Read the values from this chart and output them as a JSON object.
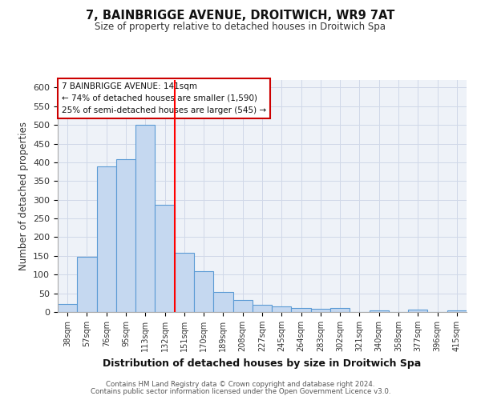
{
  "title1": "7, BAINBRIGGE AVENUE, DROITWICH, WR9 7AT",
  "title2": "Size of property relative to detached houses in Droitwich Spa",
  "xlabel": "Distribution of detached houses by size in Droitwich Spa",
  "ylabel": "Number of detached properties",
  "categories": [
    "38sqm",
    "57sqm",
    "76sqm",
    "95sqm",
    "113sqm",
    "132sqm",
    "151sqm",
    "170sqm",
    "189sqm",
    "208sqm",
    "227sqm",
    "245sqm",
    "264sqm",
    "283sqm",
    "302sqm",
    "321sqm",
    "340sqm",
    "358sqm",
    "377sqm",
    "396sqm",
    "415sqm"
  ],
  "values": [
    22,
    148,
    390,
    408,
    500,
    287,
    158,
    110,
    53,
    32,
    20,
    15,
    10,
    8,
    10,
    0,
    5,
    0,
    7,
    0,
    5
  ],
  "bar_color": "#c5d8f0",
  "bar_edge_color": "#5b9bd5",
  "grid_color": "#d0d8e8",
  "bg_color": "#eef2f8",
  "red_line_x": 5.5,
  "annotation_line1": "7 BAINBRIGGE AVENUE: 141sqm",
  "annotation_line2": "← 74% of detached houses are smaller (1,590)",
  "annotation_line3": "25% of semi-detached houses are larger (545) →",
  "annotation_box_color": "#ffffff",
  "annotation_box_edge": "#cc0000",
  "ylim": [
    0,
    620
  ],
  "yticks": [
    0,
    50,
    100,
    150,
    200,
    250,
    300,
    350,
    400,
    450,
    500,
    550,
    600
  ],
  "footer1": "Contains HM Land Registry data © Crown copyright and database right 2024.",
  "footer2": "Contains public sector information licensed under the Open Government Licence v3.0."
}
